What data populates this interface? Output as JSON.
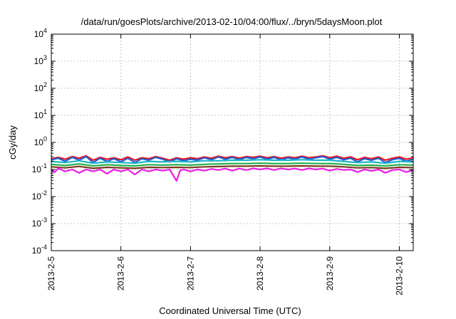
{
  "chart_data": {
    "type": "line",
    "title": "/data/run/goesPlots/archive/2013-02-10/04:00/flux/../bryn/5daysMoon.plot",
    "xlabel": "Coordinated Universal Time (UTC)",
    "ylabel": "cGy/day",
    "yscale": "log",
    "ylim": [
      0.0001,
      10000
    ],
    "xlim": [
      0,
      5.2
    ],
    "grid": true,
    "x_ticks": [
      {
        "x": 0,
        "label": "2013-2-5"
      },
      {
        "x": 1,
        "label": "2013-2-6"
      },
      {
        "x": 2,
        "label": "2013-2-7"
      },
      {
        "x": 3,
        "label": "2013-2-8"
      },
      {
        "x": 4,
        "label": "2013-2-9"
      },
      {
        "x": 5,
        "label": "2013-2-10"
      }
    ],
    "y_ticks": [
      {
        "y": 0.0001,
        "base": "10",
        "exp": "-4"
      },
      {
        "y": 0.001,
        "base": "10",
        "exp": "-3"
      },
      {
        "y": 0.01,
        "base": "10",
        "exp": "-2"
      },
      {
        "y": 0.1,
        "base": "10",
        "exp": "-1"
      },
      {
        "y": 1,
        "base": "10",
        "exp": "0"
      },
      {
        "y": 10,
        "base": "10",
        "exp": "1"
      },
      {
        "y": 100,
        "base": "10",
        "exp": "2"
      },
      {
        "y": 1000,
        "base": "10",
        "exp": "3"
      },
      {
        "y": 10000,
        "base": "10",
        "exp": "4"
      }
    ],
    "series": [
      {
        "color": "#e8141c",
        "values": [
          [
            0,
            0.25
          ],
          [
            0.1,
            0.28
          ],
          [
            0.2,
            0.24
          ],
          [
            0.3,
            0.3
          ],
          [
            0.4,
            0.26
          ],
          [
            0.5,
            0.32
          ],
          [
            0.6,
            0.22
          ],
          [
            0.7,
            0.28
          ],
          [
            0.8,
            0.24
          ],
          [
            0.9,
            0.27
          ],
          [
            1,
            0.23
          ],
          [
            1.1,
            0.29
          ],
          [
            1.2,
            0.22
          ],
          [
            1.3,
            0.27
          ],
          [
            1.4,
            0.25
          ],
          [
            1.5,
            0.3
          ],
          [
            1.6,
            0.26
          ],
          [
            1.7,
            0.22
          ],
          [
            1.8,
            0.27
          ],
          [
            1.9,
            0.24
          ],
          [
            2,
            0.27
          ],
          [
            2.1,
            0.25
          ],
          [
            2.2,
            0.29
          ],
          [
            2.3,
            0.26
          ],
          [
            2.4,
            0.31
          ],
          [
            2.5,
            0.27
          ],
          [
            2.6,
            0.3
          ],
          [
            2.7,
            0.26
          ],
          [
            2.8,
            0.3
          ],
          [
            2.9,
            0.28
          ],
          [
            3,
            0.31
          ],
          [
            3.1,
            0.27
          ],
          [
            3.2,
            0.3
          ],
          [
            3.3,
            0.26
          ],
          [
            3.4,
            0.29
          ],
          [
            3.5,
            0.27
          ],
          [
            3.6,
            0.31
          ],
          [
            3.7,
            0.27
          ],
          [
            3.8,
            0.29
          ],
          [
            3.9,
            0.32
          ],
          [
            4,
            0.27
          ],
          [
            4.1,
            0.31
          ],
          [
            4.2,
            0.26
          ],
          [
            4.3,
            0.29
          ],
          [
            4.4,
            0.23
          ],
          [
            4.5,
            0.28
          ],
          [
            4.6,
            0.25
          ],
          [
            4.7,
            0.29
          ],
          [
            4.8,
            0.22
          ],
          [
            4.9,
            0.26
          ],
          [
            5,
            0.29
          ],
          [
            5.1,
            0.24
          ],
          [
            5.2,
            0.27
          ]
        ]
      },
      {
        "color": "#1e5fd6",
        "values": [
          [
            0,
            0.23
          ],
          [
            0.1,
            0.26
          ],
          [
            0.2,
            0.2
          ],
          [
            0.3,
            0.28
          ],
          [
            0.4,
            0.22
          ],
          [
            0.5,
            0.3
          ],
          [
            0.6,
            0.18
          ],
          [
            0.7,
            0.26
          ],
          [
            0.8,
            0.2
          ],
          [
            0.9,
            0.25
          ],
          [
            1,
            0.19
          ],
          [
            1.1,
            0.26
          ],
          [
            1.2,
            0.18
          ],
          [
            1.3,
            0.25
          ],
          [
            1.4,
            0.22
          ],
          [
            1.5,
            0.28
          ],
          [
            1.6,
            0.24
          ],
          [
            1.7,
            0.19
          ],
          [
            1.8,
            0.25
          ],
          [
            1.9,
            0.21
          ],
          [
            2,
            0.24
          ],
          [
            2.1,
            0.22
          ],
          [
            2.2,
            0.27
          ],
          [
            2.3,
            0.23
          ],
          [
            2.4,
            0.29
          ],
          [
            2.5,
            0.24
          ],
          [
            2.6,
            0.28
          ],
          [
            2.7,
            0.23
          ],
          [
            2.8,
            0.28
          ],
          [
            2.9,
            0.25
          ],
          [
            3,
            0.29
          ],
          [
            3.1,
            0.24
          ],
          [
            3.2,
            0.28
          ],
          [
            3.3,
            0.23
          ],
          [
            3.4,
            0.27
          ],
          [
            3.5,
            0.24
          ],
          [
            3.6,
            0.29
          ],
          [
            3.7,
            0.24
          ],
          [
            3.8,
            0.27
          ],
          [
            3.9,
            0.3
          ],
          [
            4,
            0.24
          ],
          [
            4.1,
            0.28
          ],
          [
            4.2,
            0.23
          ],
          [
            4.3,
            0.26
          ],
          [
            4.4,
            0.19
          ],
          [
            4.5,
            0.25
          ],
          [
            4.6,
            0.22
          ],
          [
            4.7,
            0.26
          ],
          [
            4.8,
            0.18
          ],
          [
            4.9,
            0.23
          ],
          [
            5,
            0.26
          ],
          [
            5.1,
            0.2
          ],
          [
            5.2,
            0.24
          ]
        ]
      },
      {
        "color": "#19b5c8",
        "values": [
          [
            0,
            0.2
          ],
          [
            0.2,
            0.18
          ],
          [
            0.4,
            0.21
          ],
          [
            0.6,
            0.17
          ],
          [
            0.8,
            0.19
          ],
          [
            1,
            0.18
          ],
          [
            1.2,
            0.17
          ],
          [
            1.4,
            0.2
          ],
          [
            1.6,
            0.19
          ],
          [
            1.8,
            0.2
          ],
          [
            2,
            0.19
          ],
          [
            2.2,
            0.21
          ],
          [
            2.4,
            0.21
          ],
          [
            2.6,
            0.22
          ],
          [
            2.8,
            0.22
          ],
          [
            3,
            0.23
          ],
          [
            3.2,
            0.22
          ],
          [
            3.4,
            0.22
          ],
          [
            3.6,
            0.23
          ],
          [
            3.8,
            0.22
          ],
          [
            4,
            0.22
          ],
          [
            4.2,
            0.2
          ],
          [
            4.4,
            0.18
          ],
          [
            4.6,
            0.19
          ],
          [
            4.8,
            0.17
          ],
          [
            5,
            0.2
          ],
          [
            5.2,
            0.19
          ]
        ]
      },
      {
        "color": "#22b04a",
        "values": [
          [
            0,
            0.155
          ],
          [
            0.2,
            0.14
          ],
          [
            0.4,
            0.16
          ],
          [
            0.6,
            0.135
          ],
          [
            0.8,
            0.15
          ],
          [
            1,
            0.14
          ],
          [
            1.2,
            0.135
          ],
          [
            1.4,
            0.15
          ],
          [
            1.6,
            0.145
          ],
          [
            1.8,
            0.15
          ],
          [
            2,
            0.145
          ],
          [
            2.2,
            0.155
          ],
          [
            2.4,
            0.16
          ],
          [
            2.6,
            0.165
          ],
          [
            2.8,
            0.165
          ],
          [
            3,
            0.17
          ],
          [
            3.2,
            0.165
          ],
          [
            3.4,
            0.165
          ],
          [
            3.6,
            0.17
          ],
          [
            3.8,
            0.165
          ],
          [
            4,
            0.165
          ],
          [
            4.2,
            0.155
          ],
          [
            4.4,
            0.14
          ],
          [
            4.6,
            0.145
          ],
          [
            4.8,
            0.135
          ],
          [
            5,
            0.15
          ],
          [
            5.2,
            0.145
          ]
        ]
      },
      {
        "color": "#7a3b1e",
        "values": [
          [
            0,
            0.125
          ],
          [
            0.2,
            0.115
          ],
          [
            0.4,
            0.13
          ],
          [
            0.6,
            0.11
          ],
          [
            0.8,
            0.12
          ],
          [
            1,
            0.115
          ],
          [
            1.2,
            0.11
          ],
          [
            1.4,
            0.12
          ],
          [
            1.6,
            0.118
          ],
          [
            1.8,
            0.12
          ],
          [
            2,
            0.118
          ],
          [
            2.2,
            0.125
          ],
          [
            2.4,
            0.128
          ],
          [
            2.6,
            0.132
          ],
          [
            2.8,
            0.132
          ],
          [
            3,
            0.135
          ],
          [
            3.2,
            0.132
          ],
          [
            3.4,
            0.132
          ],
          [
            3.6,
            0.135
          ],
          [
            3.8,
            0.132
          ],
          [
            4,
            0.132
          ],
          [
            4.2,
            0.125
          ],
          [
            4.4,
            0.115
          ],
          [
            4.6,
            0.118
          ],
          [
            4.8,
            0.11
          ],
          [
            5,
            0.12
          ],
          [
            5.2,
            0.118
          ]
        ]
      },
      {
        "color": "#ee1be6",
        "values": [
          [
            0,
            0.1
          ],
          [
            0.05,
            0.08
          ],
          [
            0.1,
            0.11
          ],
          [
            0.2,
            0.085
          ],
          [
            0.3,
            0.1
          ],
          [
            0.4,
            0.075
          ],
          [
            0.5,
            0.1
          ],
          [
            0.6,
            0.085
          ],
          [
            0.7,
            0.1
          ],
          [
            0.8,
            0.07
          ],
          [
            0.9,
            0.1
          ],
          [
            1,
            0.085
          ],
          [
            1.1,
            0.1
          ],
          [
            1.2,
            0.065
          ],
          [
            1.3,
            0.1
          ],
          [
            1.4,
            0.085
          ],
          [
            1.5,
            0.1
          ],
          [
            1.6,
            0.09
          ],
          [
            1.7,
            0.1
          ],
          [
            1.8,
            0.038
          ],
          [
            1.85,
            0.09
          ],
          [
            1.9,
            0.1
          ],
          [
            2,
            0.085
          ],
          [
            2.1,
            0.1
          ],
          [
            2.2,
            0.09
          ],
          [
            2.3,
            0.105
          ],
          [
            2.4,
            0.095
          ],
          [
            2.5,
            0.108
          ],
          [
            2.6,
            0.09
          ],
          [
            2.7,
            0.108
          ],
          [
            2.8,
            0.095
          ],
          [
            2.9,
            0.11
          ],
          [
            3,
            0.1
          ],
          [
            3.1,
            0.11
          ],
          [
            3.2,
            0.095
          ],
          [
            3.3,
            0.11
          ],
          [
            3.4,
            0.1
          ],
          [
            3.5,
            0.108
          ],
          [
            3.6,
            0.095
          ],
          [
            3.7,
            0.11
          ],
          [
            3.8,
            0.1
          ],
          [
            3.9,
            0.108
          ],
          [
            4,
            0.09
          ],
          [
            4.1,
            0.105
          ],
          [
            4.2,
            0.095
          ],
          [
            4.3,
            0.1
          ],
          [
            4.4,
            0.08
          ],
          [
            4.5,
            0.1
          ],
          [
            4.6,
            0.088
          ],
          [
            4.7,
            0.1
          ],
          [
            4.8,
            0.075
          ],
          [
            4.9,
            0.095
          ],
          [
            5,
            0.1
          ],
          [
            5.1,
            0.08
          ],
          [
            5.2,
            0.095
          ]
        ]
      }
    ]
  }
}
